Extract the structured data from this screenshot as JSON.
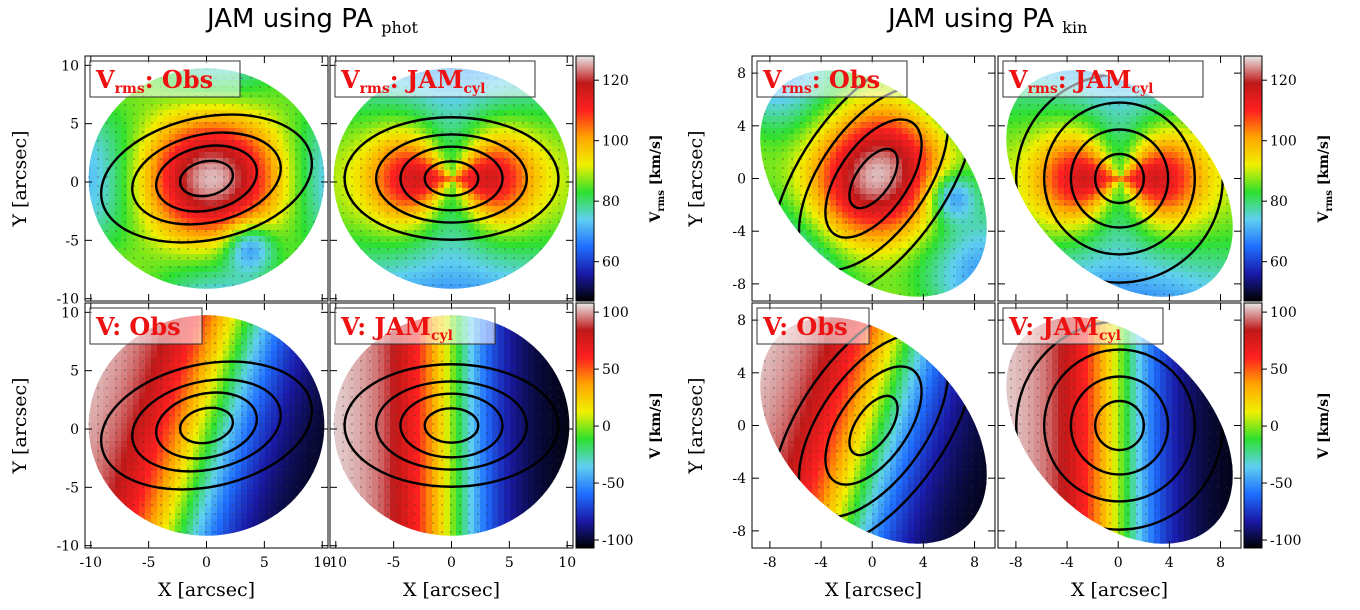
{
  "chart_data": [
    {
      "type": "heatmap",
      "title": "JAM using PA",
      "title_subscript": "phot",
      "xlabel": "X [arcsec]",
      "ylabel": "Y [arcsec]",
      "xlim": [
        -10.5,
        10.5
      ],
      "ylim": [
        -10.2,
        10.8
      ],
      "xticks": [
        -10,
        -5,
        0,
        5,
        10
      ],
      "yticks": [
        -10,
        -5,
        0,
        5,
        10
      ],
      "panels": [
        {
          "row": 0,
          "col": 0,
          "title": "V",
          "title_subscript": "rms",
          "title_suffix": ": Obs"
        },
        {
          "row": 0,
          "col": 1,
          "title": "V",
          "title_subscript": "rms",
          "title_suffix": ": JAM",
          "title_suffix_subscript": "cyl"
        },
        {
          "row": 1,
          "col": 0,
          "title": "V",
          "title_subscript": "",
          "title_suffix": ": Obs"
        },
        {
          "row": 1,
          "col": 1,
          "title": "V",
          "title_subscript": "",
          "title_suffix": ": JAM",
          "title_suffix_subscript": "cyl"
        }
      ],
      "colorbars": [
        {
          "row": 0,
          "label": "V",
          "label_subscript": "rms",
          "label_suffix": "[km/s]",
          "ticks": [
            60,
            80,
            100,
            120
          ],
          "range": [
            47,
            128
          ]
        },
        {
          "row": 1,
          "label": "V",
          "label_subscript": "",
          "label_suffix": "[km/s]",
          "ticks": [
            -100,
            -50,
            0,
            50,
            100
          ],
          "range": [
            -107,
            108
          ]
        }
      ],
      "pa_deg": 0
    },
    {
      "type": "heatmap",
      "title": "JAM using PA",
      "title_subscript": "kin",
      "xlabel": "X [arcsec]",
      "ylabel": "Y [arcsec]",
      "xlim": [
        -9.4,
        9.6
      ],
      "ylim": [
        -9.3,
        9.3
      ],
      "xticks": [
        -8,
        -4,
        0,
        4,
        8
      ],
      "yticks": [
        -8,
        -4,
        0,
        4,
        8
      ],
      "panels": [
        {
          "row": 0,
          "col": 0,
          "title": "V",
          "title_subscript": "rms",
          "title_suffix": ": Obs"
        },
        {
          "row": 0,
          "col": 1,
          "title": "V",
          "title_subscript": "rms",
          "title_suffix": ": JAM",
          "title_suffix_subscript": "cyl"
        },
        {
          "row": 1,
          "col": 0,
          "title": "V",
          "title_subscript": "",
          "title_suffix": ": Obs"
        },
        {
          "row": 1,
          "col": 1,
          "title": "V",
          "title_subscript": "",
          "title_suffix": ": JAM",
          "title_suffix_subscript": "cyl"
        }
      ],
      "colorbars": [
        {
          "row": 0,
          "label": "V",
          "label_subscript": "rms",
          "label_suffix": "[km/s]",
          "ticks": [
            60,
            80,
            100,
            120
          ],
          "range": [
            47,
            128
          ]
        },
        {
          "row": 1,
          "label": "V",
          "label_subscript": "",
          "label_suffix": "[km/s]",
          "ticks": [
            -100,
            -50,
            0,
            50,
            100
          ],
          "range": [
            -107,
            108
          ]
        }
      ],
      "pa_deg": 45
    }
  ],
  "colormap_stops": [
    "#000000",
    "#1a1aa8",
    "#1f6fff",
    "#5fd0f0",
    "#2ee02e",
    "#f0f000",
    "#ffa500",
    "#ff2020",
    "#c01818",
    "#e8e8e8"
  ]
}
